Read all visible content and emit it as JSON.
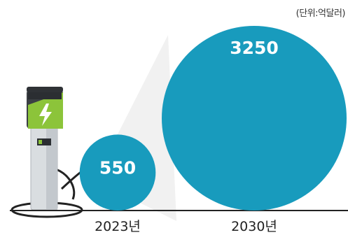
{
  "chart_data": {
    "type": "bubble",
    "unit_note": "(단위:억달러)",
    "categories": [
      "2023년",
      "2030년"
    ],
    "values": [
      550,
      3250
    ]
  },
  "colors": {
    "bubble": "#189bbd",
    "charger_body": "#d9dde0",
    "charger_head": "#3b3f44",
    "charger_accent": "#8cc43a",
    "cable": "#222222"
  },
  "icons": {
    "charger": "ev-charger-icon",
    "bolt": "lightning-bolt-icon"
  }
}
